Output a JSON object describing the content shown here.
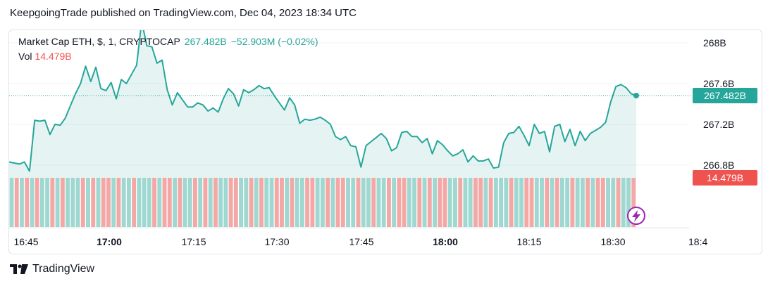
{
  "header": {
    "published": "KeepgoingTrade published on TradingView.com, Dec 04, 2023 18:34 UTC"
  },
  "legend": {
    "symbol": "Market Cap ETH, $, 1, CRYPTOCAP",
    "last": "267.482B",
    "change": "−52.903M (−0.02%)",
    "vol_label": "Vol",
    "vol_value": "14.479B"
  },
  "price_badge": "267.482B",
  "volume_badge": "14.479B",
  "brand": {
    "name": "TradingView"
  },
  "icons": {
    "logo": "tradingview-logo-icon",
    "replay": "lightning-icon"
  },
  "colors": {
    "up": "#26a69a",
    "down": "#ef5350",
    "up_vol": "#9fd8d1",
    "down_vol": "#f3a8a5"
  },
  "chart_data": {
    "type": "line",
    "title": "Market Cap ETH, $, 1, CRYPTOCAP",
    "x_ticks": [
      "16:45",
      "17:00",
      "17:15",
      "17:30",
      "17:45",
      "18:00",
      "18:15",
      "18:30",
      "18:4"
    ],
    "y_ticks": [
      "268B",
      "267.6B",
      "267.2B",
      "266.8B"
    ],
    "ylim": [
      266.75,
      268.2
    ],
    "series": [
      {
        "name": "Market Cap ETH",
        "values": [
          266.83,
          266.82,
          266.81,
          266.83,
          266.74,
          267.24,
          267.23,
          267.24,
          267.1,
          267.2,
          267.19,
          267.26,
          267.38,
          267.5,
          267.6,
          267.77,
          267.62,
          267.76,
          267.55,
          267.53,
          267.61,
          267.45,
          267.64,
          267.6,
          267.69,
          267.78,
          268.21,
          267.97,
          267.96,
          267.8,
          267.83,
          267.54,
          267.39,
          267.51,
          267.44,
          267.37,
          267.37,
          267.41,
          267.39,
          267.33,
          267.36,
          267.32,
          267.45,
          267.55,
          267.5,
          267.38,
          267.54,
          267.51,
          267.54,
          267.58,
          267.55,
          267.56,
          267.48,
          267.41,
          267.34,
          267.46,
          267.39,
          267.21,
          267.25,
          267.24,
          267.25,
          267.27,
          267.24,
          267.2,
          267.08,
          267.05,
          267.08,
          266.99,
          266.98,
          266.78,
          266.99,
          267.03,
          267.07,
          267.11,
          267.06,
          266.94,
          266.97,
          267.12,
          267.13,
          267.08,
          267.08,
          267.02,
          267.06,
          266.91,
          267.04,
          267.0,
          266.94,
          266.89,
          266.91,
          266.95,
          266.83,
          266.89,
          266.84,
          266.84,
          266.86,
          266.77,
          266.78,
          267.02,
          267.11,
          267.12,
          267.18,
          267.09,
          266.99,
          267.2,
          267.11,
          267.13,
          266.93,
          267.18,
          267.2,
          267.03,
          267.15,
          266.99,
          267.13,
          267.04,
          267.11,
          267.14,
          267.17,
          267.22,
          267.42,
          267.57,
          267.59,
          267.56,
          267.5,
          267.482
        ]
      }
    ],
    "volume": {
      "last": "14.479B",
      "directions": [
        1,
        0,
        1,
        0,
        1,
        0,
        1,
        1,
        0,
        1,
        0,
        1,
        1,
        1,
        0,
        1,
        0,
        1,
        0,
        0,
        1,
        0,
        1,
        1,
        0,
        1,
        1,
        1,
        0,
        1,
        0,
        0,
        1,
        0,
        1,
        1,
        0,
        1,
        0,
        1,
        0,
        1,
        1,
        0,
        0,
        1,
        1,
        0,
        1,
        0,
        1,
        1,
        0,
        0,
        1,
        0,
        1,
        1,
        0,
        0,
        1,
        1,
        0,
        1,
        0,
        0,
        1,
        1,
        0,
        1,
        1,
        0,
        1,
        1,
        0,
        1,
        0,
        0,
        1,
        1,
        0,
        1,
        0,
        1,
        0,
        0,
        1,
        1,
        0,
        1,
        1,
        0,
        0,
        1,
        0,
        1,
        1,
        1,
        0,
        1,
        1,
        0,
        0,
        1,
        1,
        0,
        1,
        0,
        1,
        1,
        0,
        1,
        1,
        0,
        1,
        0,
        0,
        1,
        1,
        0,
        1,
        1,
        0
      ]
    },
    "grid": true,
    "legend_position": "top-left"
  }
}
